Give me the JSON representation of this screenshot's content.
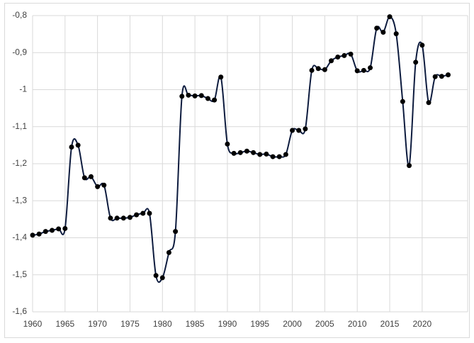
{
  "chart_data": {
    "type": "line",
    "x": [
      1960,
      1961,
      1962,
      1963,
      1964,
      1965,
      1966,
      1967,
      1968,
      1969,
      1970,
      1971,
      1972,
      1973,
      1974,
      1975,
      1976,
      1977,
      1978,
      1979,
      1980,
      1981,
      1982,
      1983,
      1984,
      1985,
      1986,
      1987,
      1988,
      1989,
      1990,
      1991,
      1992,
      1993,
      1994,
      1995,
      1996,
      1997,
      1998,
      1999,
      2000,
      2001,
      2002,
      2003,
      2004,
      2005,
      2006,
      2007,
      2008,
      2009,
      2010,
      2011,
      2012,
      2013,
      2014,
      2015,
      2016,
      2017,
      2018,
      2019,
      2020,
      2021,
      2022,
      2023,
      2024
    ],
    "series": [
      {
        "color": "#0d1b3e",
        "values": [
          -1.393,
          -1.39,
          -1.383,
          -1.38,
          -1.376,
          -1.375,
          -1.155,
          -1.15,
          -1.238,
          -1.235,
          -1.262,
          -1.258,
          -1.347,
          -1.347,
          -1.347,
          -1.345,
          -1.338,
          -1.334,
          -1.334,
          -1.502,
          -1.508,
          -1.44,
          -1.383,
          -1.018,
          -1.015,
          -1.017,
          -1.016,
          -1.024,
          -1.028,
          -0.966,
          -1.147,
          -1.172,
          -1.17,
          -1.166,
          -1.17,
          -1.175,
          -1.174,
          -1.181,
          -1.181,
          -1.175,
          -1.11,
          -1.11,
          -1.106,
          -0.948,
          -0.943,
          -0.946,
          -0.922,
          -0.912,
          -0.908,
          -0.904,
          -0.949,
          -0.948,
          -0.941,
          -0.834,
          -0.845,
          -0.803,
          -0.849,
          -1.032,
          -1.205,
          -0.926,
          -0.88,
          -1.035,
          -0.965,
          -0.964,
          -0.96
        ]
      }
    ],
    "xlim": [
      1960,
      2027
    ],
    "xticks": [
      1960,
      1965,
      1970,
      1975,
      1980,
      1985,
      1990,
      1995,
      2000,
      2005,
      2010,
      2015,
      2020
    ],
    "ylim": [
      -1.6,
      -0.8
    ],
    "yticks": [
      {
        "value": -1.6,
        "label": "-1,6"
      },
      {
        "value": -1.5,
        "label": "-1,5"
      },
      {
        "value": -1.4,
        "label": "-1,4"
      },
      {
        "value": -1.3,
        "label": "-1,3"
      },
      {
        "value": -1.2,
        "label": "-1,2"
      },
      {
        "value": -1.1,
        "label": "-1,1"
      },
      {
        "value": -1,
        "label": "-1"
      },
      {
        "value": -0.9,
        "label": "-0,9"
      },
      {
        "value": -0.8,
        "label": "-0,8"
      }
    ],
    "grid": true
  }
}
